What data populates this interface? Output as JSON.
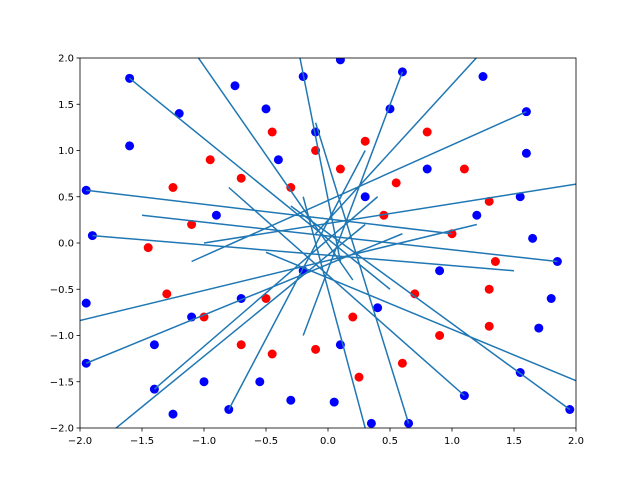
{
  "chart_data": {
    "type": "scatter",
    "xlim": [
      -2,
      2
    ],
    "ylim": [
      -2,
      2
    ],
    "xticks": [
      {
        "value": -2,
        "label": "−2.0"
      },
      {
        "value": -1.5,
        "label": "−1.5"
      },
      {
        "value": -1,
        "label": "−1.0"
      },
      {
        "value": -0.5,
        "label": "−0.5"
      },
      {
        "value": 0,
        "label": "0.0"
      },
      {
        "value": 0.5,
        "label": "0.5"
      },
      {
        "value": 1,
        "label": "1.0"
      },
      {
        "value": 1.5,
        "label": "1.5"
      },
      {
        "value": 2,
        "label": "2.0"
      }
    ],
    "yticks": [
      {
        "value": -2,
        "label": "−2.0"
      },
      {
        "value": -1.5,
        "label": "−1.5"
      },
      {
        "value": -1,
        "label": "−1.0"
      },
      {
        "value": -0.5,
        "label": "−0.5"
      },
      {
        "value": 0,
        "label": "0.0"
      },
      {
        "value": 0.5,
        "label": "0.5"
      },
      {
        "value": 1,
        "label": "1.0"
      },
      {
        "value": 1.5,
        "label": "1.5"
      },
      {
        "value": 2,
        "label": "2.0"
      }
    ],
    "grid": false,
    "series": [
      {
        "type": "scatter",
        "color": "#0000ff",
        "x": [
          -1.6,
          -1.6,
          -1.95,
          -1.9,
          -1.95,
          -1.95,
          -1.4,
          -1.4,
          -1.25,
          -1.0,
          -0.8,
          -0.55,
          -0.3,
          0.05,
          0.35,
          0.65,
          1.1,
          1.55,
          1.95,
          1.7,
          1.8,
          1.85,
          1.65,
          1.55,
          1.6,
          1.6,
          1.25,
          0.6,
          0.1,
          -0.2,
          -0.75,
          -1.2,
          -0.5,
          0.5,
          -0.4,
          0.3,
          -0.2,
          0.4,
          -0.9,
          0.9,
          -0.7,
          0.8,
          -1.1,
          1.2,
          0.1,
          -0.1
        ],
        "values": [
          1.78,
          1.05,
          0.57,
          0.08,
          -0.65,
          -1.3,
          -1.1,
          -1.58,
          -1.85,
          -1.5,
          -1.8,
          -1.5,
          -1.7,
          -1.72,
          -1.95,
          -1.95,
          -1.65,
          -1.4,
          -1.8,
          -0.92,
          -0.6,
          -0.2,
          0.05,
          0.5,
          0.97,
          1.42,
          1.8,
          1.85,
          1.98,
          1.8,
          1.7,
          1.4,
          1.45,
          1.45,
          0.9,
          0.5,
          -0.3,
          -0.7,
          0.3,
          -0.3,
          -0.6,
          0.8,
          -0.8,
          0.3,
          -1.1,
          1.2
        ]
      },
      {
        "type": "scatter",
        "color": "#ff0000",
        "x": [
          -0.45,
          -0.1,
          0.3,
          0.8,
          1.1,
          1.3,
          1.35,
          1.3,
          1.3,
          0.9,
          0.6,
          0.25,
          -0.1,
          -0.45,
          -0.7,
          -1.0,
          -1.3,
          -1.45,
          -1.25,
          -0.95,
          -0.7,
          0.55,
          0.7,
          -0.5,
          0.2,
          1.0,
          -1.1,
          0.1,
          -0.3,
          0.45
        ],
        "values": [
          1.2,
          1.0,
          1.1,
          1.2,
          0.8,
          0.45,
          -0.2,
          -0.5,
          -0.9,
          -1.0,
          -1.3,
          -1.45,
          -1.15,
          -1.2,
          -1.1,
          -0.8,
          -0.55,
          -0.05,
          0.6,
          0.9,
          0.7,
          0.65,
          -0.55,
          -0.6,
          -0.8,
          0.1,
          0.2,
          0.8,
          0.6,
          0.3
        ]
      },
      {
        "type": "line",
        "color": "#1f77b4",
        "x": [
          -1.6,
          0.5,
          null,
          -1.95,
          1.0,
          null,
          2.3,
          -1.0,
          null,
          -2.5,
          1.2,
          null,
          -0.3,
          0.1,
          null,
          0.4,
          -0.2,
          null,
          2.2,
          -0.5,
          null,
          -1.8,
          0.3,
          null,
          1.4,
          -0.1,
          null,
          -1.2,
          0.2,
          null,
          1.95,
          -0.3,
          null,
          -1.95,
          0.6,
          null,
          1.6,
          -1.1,
          null,
          -1.4,
          0.4,
          null,
          0.6,
          -0.2,
          null,
          1.1,
          -0.8,
          null,
          -0.8,
          0.3,
          null,
          1.85,
          -1.5,
          null,
          -1.9,
          1.5,
          null,
          0.65,
          -0.1
        ],
        "values": [
          1.78,
          -0.5,
          null,
          0.57,
          0.1,
          null,
          0.7,
          0.0,
          null,
          -1.0,
          0.2,
          null,
          2.5,
          -0.2,
          null,
          -2.5,
          0.5,
          null,
          -1.6,
          -0.1,
          null,
          -2.1,
          0.2,
          null,
          2.3,
          0.1,
          null,
          2.3,
          -0.4,
          null,
          -1.8,
          0.4,
          null,
          -1.3,
          0.1,
          null,
          1.42,
          -0.2,
          null,
          -1.58,
          0.5,
          null,
          1.85,
          -1.0,
          null,
          -1.65,
          0.6,
          null,
          -1.8,
          1.0,
          null,
          -0.2,
          0.3,
          null,
          0.08,
          -0.3,
          null,
          -1.95,
          1.3
        ]
      }
    ]
  }
}
